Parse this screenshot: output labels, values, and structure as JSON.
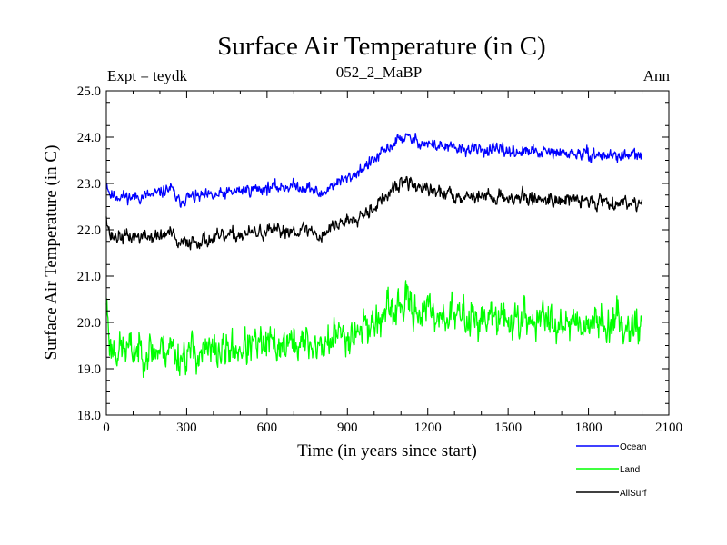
{
  "chart_data": {
    "type": "line",
    "title": "Surface Air Temperature (in C)",
    "subtitle_left": "Expt = teydk",
    "subtitle_center": "052_2_MaBP",
    "subtitle_right": "Ann",
    "xlabel": "Time (in years since start)",
    "ylabel": "Surface Air Temperature (in C)",
    "xlim": [
      0,
      2100
    ],
    "ylim": [
      18.0,
      25.0
    ],
    "xticks": [
      0,
      300,
      600,
      900,
      1200,
      1500,
      1800,
      2100
    ],
    "xtick_labels": [
      "0",
      "300",
      "600",
      "900",
      "1200",
      "1500",
      "1800",
      "2100"
    ],
    "yticks": [
      18.0,
      19.0,
      20.0,
      21.0,
      22.0,
      23.0,
      24.0,
      25.0
    ],
    "ytick_labels": [
      "18.0",
      "19.0",
      "20.0",
      "21.0",
      "22.0",
      "23.0",
      "24.0",
      "25.0"
    ],
    "legend_position": "bottom-right",
    "series": [
      {
        "name": "Ocean",
        "color": "#0000ff",
        "noise": 0.06,
        "seed": 11,
        "points": [
          [
            0,
            23.05
          ],
          [
            15,
            22.75
          ],
          [
            100,
            22.7
          ],
          [
            180,
            22.75
          ],
          [
            240,
            22.9
          ],
          [
            270,
            22.6
          ],
          [
            300,
            22.7
          ],
          [
            400,
            22.72
          ],
          [
            500,
            22.85
          ],
          [
            600,
            22.9
          ],
          [
            700,
            22.95
          ],
          [
            760,
            22.9
          ],
          [
            800,
            22.75
          ],
          [
            850,
            23.0
          ],
          [
            900,
            23.1
          ],
          [
            1000,
            23.5
          ],
          [
            1090,
            23.95
          ],
          [
            1110,
            24.0
          ],
          [
            1200,
            23.85
          ],
          [
            1300,
            23.75
          ],
          [
            1500,
            23.7
          ],
          [
            1700,
            23.65
          ],
          [
            1900,
            23.6
          ],
          [
            2000,
            23.6
          ]
        ]
      },
      {
        "name": "Land",
        "color": "#00ff00",
        "noise": 0.18,
        "seed": 23,
        "points": [
          [
            0,
            20.5
          ],
          [
            15,
            19.45
          ],
          [
            100,
            19.4
          ],
          [
            200,
            19.4
          ],
          [
            240,
            19.5
          ],
          [
            270,
            19.25
          ],
          [
            300,
            19.35
          ],
          [
            400,
            19.35
          ],
          [
            500,
            19.45
          ],
          [
            600,
            19.5
          ],
          [
            700,
            19.55
          ],
          [
            760,
            19.55
          ],
          [
            800,
            19.45
          ],
          [
            850,
            19.7
          ],
          [
            900,
            19.75
          ],
          [
            1000,
            20.0
          ],
          [
            1090,
            20.3
          ],
          [
            1110,
            20.4
          ],
          [
            1200,
            20.2
          ],
          [
            1300,
            20.15
          ],
          [
            1500,
            20.05
          ],
          [
            1700,
            20.05
          ],
          [
            1900,
            20.0
          ],
          [
            2000,
            19.95
          ]
        ]
      },
      {
        "name": "AllSurf",
        "color": "#000000",
        "noise": 0.07,
        "seed": 37,
        "points": [
          [
            0,
            22.35
          ],
          [
            15,
            21.85
          ],
          [
            100,
            21.85
          ],
          [
            200,
            21.85
          ],
          [
            240,
            21.95
          ],
          [
            270,
            21.65
          ],
          [
            300,
            21.75
          ],
          [
            400,
            21.8
          ],
          [
            500,
            21.9
          ],
          [
            600,
            21.95
          ],
          [
            700,
            22.0
          ],
          [
            760,
            22.0
          ],
          [
            800,
            21.85
          ],
          [
            850,
            22.1
          ],
          [
            900,
            22.2
          ],
          [
            1000,
            22.5
          ],
          [
            1090,
            22.95
          ],
          [
            1110,
            23.05
          ],
          [
            1200,
            22.85
          ],
          [
            1300,
            22.75
          ],
          [
            1500,
            22.7
          ],
          [
            1700,
            22.65
          ],
          [
            1900,
            22.6
          ],
          [
            2000,
            22.6
          ]
        ]
      }
    ]
  }
}
